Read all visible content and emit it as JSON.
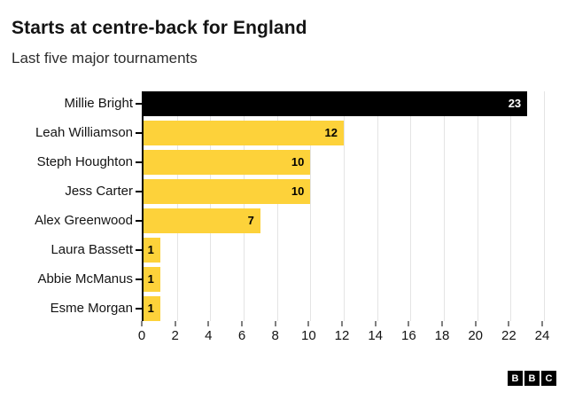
{
  "header": {
    "title": "Starts at centre-back for England",
    "subtitle": "Last five major tournaments"
  },
  "chart_data": {
    "type": "bar",
    "orientation": "horizontal",
    "title": "Starts at centre-back for England",
    "subtitle": "Last five major tournaments",
    "categories": [
      "Millie Bright",
      "Leah Williamson",
      "Steph Houghton",
      "Jess Carter",
      "Alex Greenwood",
      "Laura Bassett",
      "Abbie McManus",
      "Esme Morgan"
    ],
    "values": [
      23,
      12,
      10,
      10,
      7,
      1,
      1,
      1
    ],
    "bar_colors": [
      "#000000",
      "#fdd23a",
      "#fdd23a",
      "#fdd23a",
      "#fdd23a",
      "#fdd23a",
      "#fdd23a",
      "#fdd23a"
    ],
    "value_label_colors": [
      "#ffffff",
      "#000000",
      "#000000",
      "#000000",
      "#000000",
      "#000000",
      "#000000",
      "#000000"
    ],
    "xlabel": "",
    "ylabel": "",
    "xlim": [
      0,
      24
    ],
    "x_ticks": [
      0,
      2,
      4,
      6,
      8,
      10,
      12,
      14,
      16,
      18,
      20,
      22,
      24
    ],
    "grid": "vertical",
    "legend": "none"
  },
  "footer": {
    "logo_letters": [
      "B",
      "B",
      "C"
    ]
  },
  "colors": {
    "accent_yellow": "#fdd23a",
    "bar_black": "#000000",
    "gridline": "#e4e4e4",
    "axis": "#000000",
    "title_text": "#141414",
    "subtitle_text": "#2e2e2e"
  }
}
